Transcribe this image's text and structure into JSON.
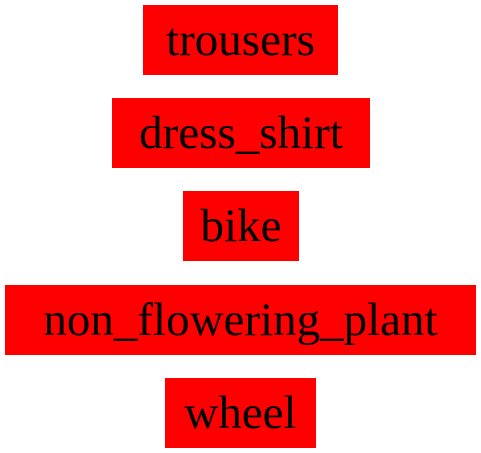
{
  "labels": [
    {
      "text": "trousers"
    },
    {
      "text": "dress_shirt"
    },
    {
      "text": "bike"
    },
    {
      "text": "non_flowering_plant"
    },
    {
      "text": "wheel"
    }
  ],
  "colors": {
    "label_background": "#ff0000",
    "label_text": "#000000",
    "page_background": "#ffffff"
  }
}
